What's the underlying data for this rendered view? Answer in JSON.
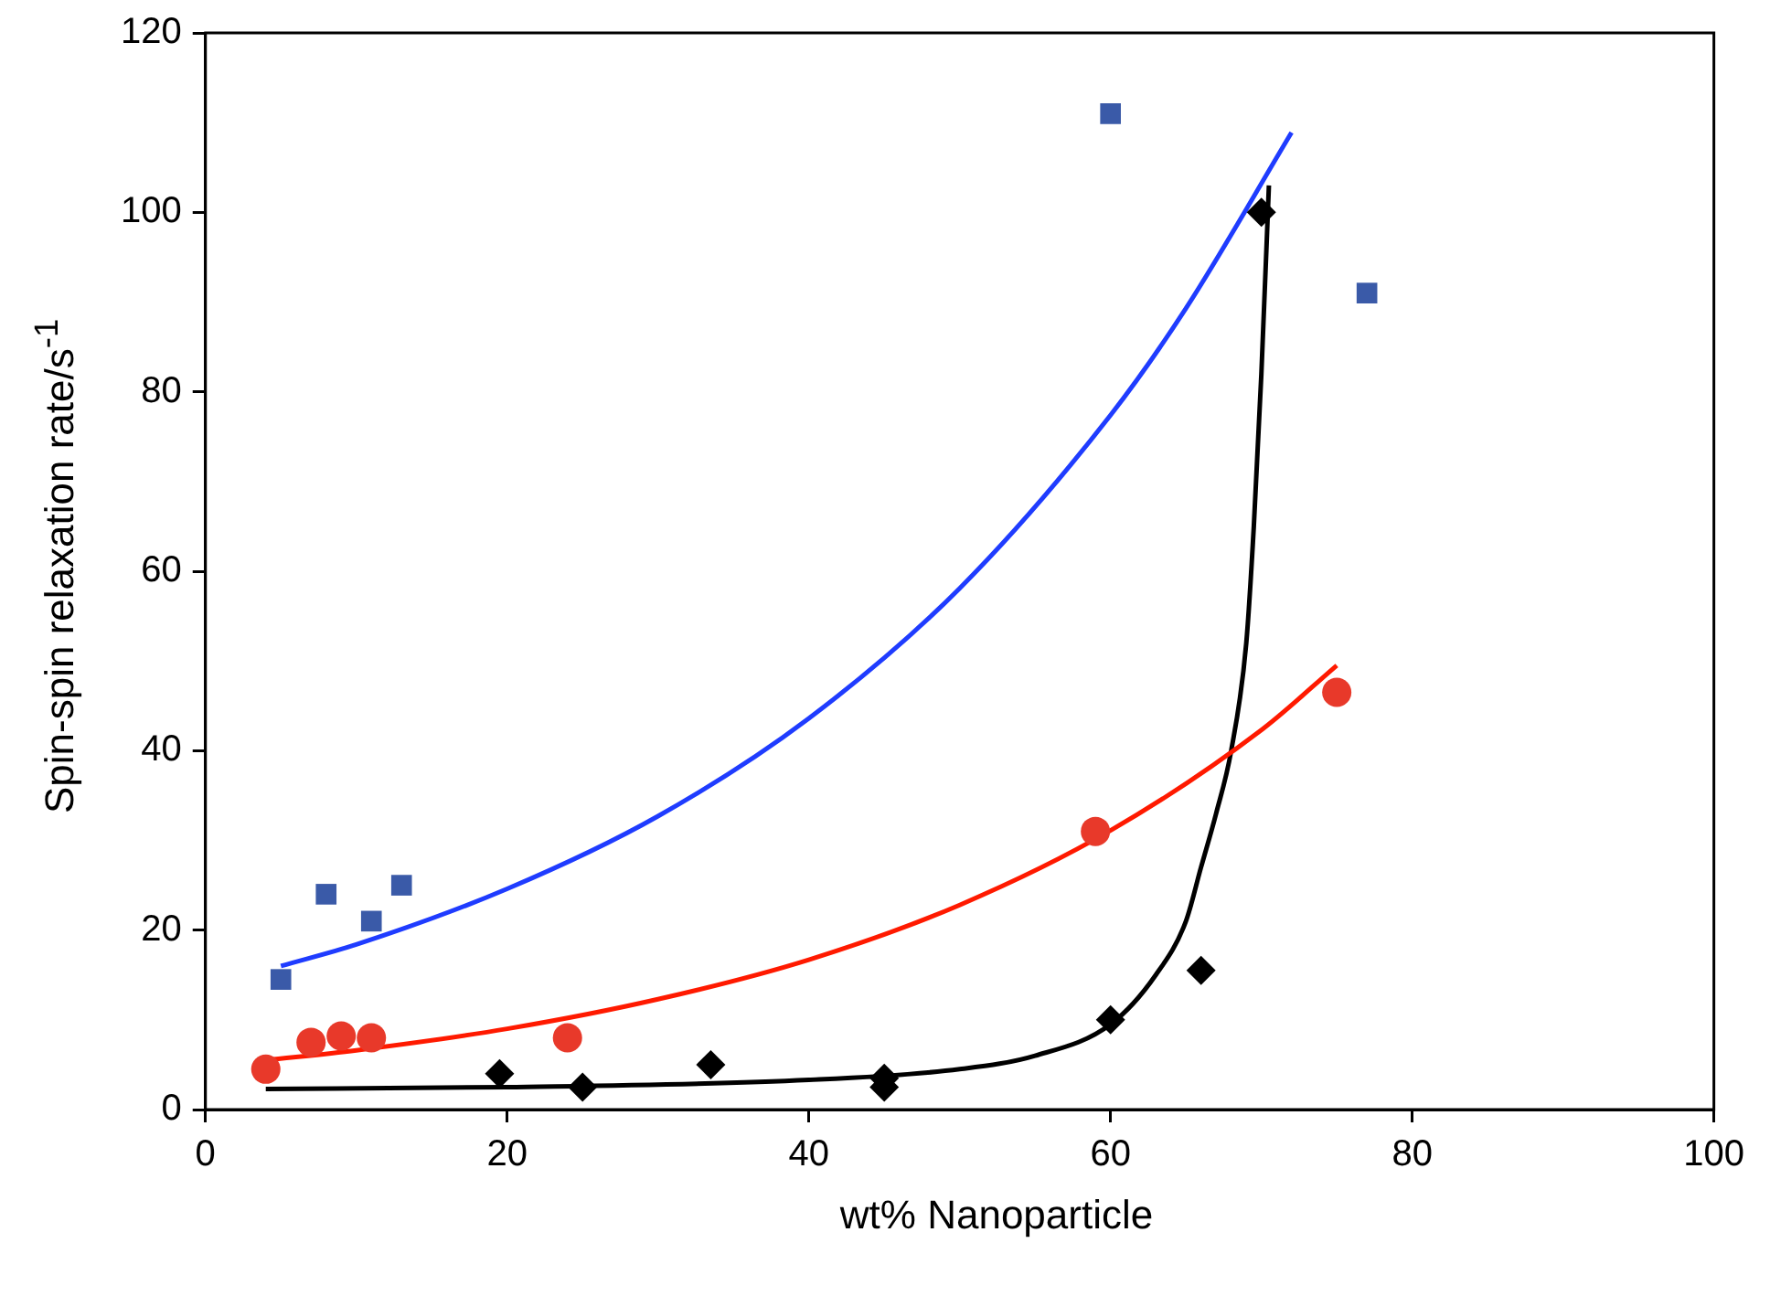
{
  "chart_data": {
    "type": "scatter",
    "xlabel": "wt% Nanoparticle",
    "ylabel": "Spin-spin relaxation rate/s$^{-1}$",
    "xlim": [
      0,
      100
    ],
    "xticks": [
      0,
      20,
      40,
      60,
      80,
      100
    ],
    "ylim": [
      0,
      120
    ],
    "yticks": [
      0,
      20,
      40,
      60,
      80,
      100,
      120
    ],
    "grid": false,
    "legend": false,
    "series": [
      {
        "type": "line",
        "color": "#1f3cff",
        "marker": "none",
        "x": [
          5,
          10,
          20,
          30,
          40,
          50,
          60,
          65,
          72
        ],
        "values": [
          16,
          18.4,
          24.6,
          32.7,
          43.6,
          58.1,
          77.4,
          89.3,
          108.9
        ]
      },
      {
        "type": "line",
        "color": "#ff1a00",
        "marker": "none",
        "x": [
          4,
          10,
          20,
          30,
          40,
          50,
          60,
          70,
          75
        ],
        "values": [
          5.5,
          6.6,
          9,
          12.3,
          16.7,
          22.8,
          31.1,
          42.3,
          49.5
        ]
      },
      {
        "type": "line",
        "color": "#000000",
        "marker": "none",
        "x": [
          4,
          20,
          40,
          50,
          55,
          60,
          63,
          65,
          66,
          67,
          68,
          69,
          69.5,
          70,
          70.5
        ],
        "values": [
          2.3,
          2.5,
          3.3,
          4.5,
          6,
          9.5,
          15,
          21,
          27,
          33,
          40,
          52,
          65,
          82,
          103
        ]
      },
      {
        "color": "#3a5aa8",
        "marker": "square",
        "x": [
          5,
          8,
          11,
          13,
          60,
          77
        ],
        "values": [
          14.5,
          24,
          21,
          25,
          111,
          91
        ]
      },
      {
        "color": "#e8392a",
        "marker": "circle",
        "x": [
          4,
          7,
          9,
          11,
          24,
          59,
          75
        ],
        "values": [
          4.5,
          7.5,
          8.2,
          8,
          8,
          31,
          46.5
        ]
      },
      {
        "color": "#000000",
        "marker": "diamond",
        "x": [
          19.5,
          25,
          33.5,
          45,
          45,
          60,
          66,
          70
        ],
        "values": [
          4,
          2.5,
          5,
          3.5,
          2.5,
          10,
          15.5,
          100
        ]
      }
    ]
  }
}
